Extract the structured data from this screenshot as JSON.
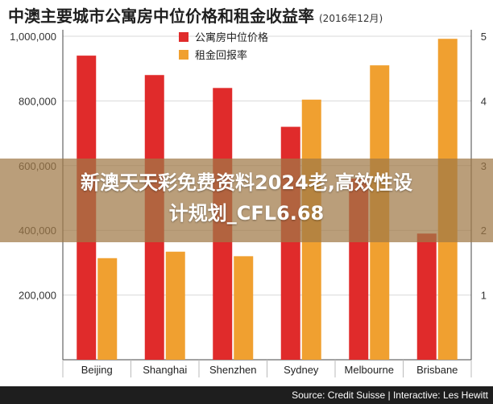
{
  "title": "中澳主要城市公寓房中位价格和租金收益率",
  "title_date": "(2016年12月)",
  "overlay": {
    "line1": "新澳天天彩免费资料2024老,高效性设",
    "line2": "计规划_CFL6.68"
  },
  "footer": {
    "source": "Source: Credit Suisse | Interactive: Les Hewitt"
  },
  "colors": {
    "price": "#e02b2b",
    "yield": "#f0a030",
    "axis": "#555555",
    "text": "#333333"
  },
  "chart_data": {
    "type": "bar",
    "categories": [
      "Beijing",
      "Shanghai",
      "Shenzhen",
      "Sydney",
      "Melbourne",
      "Brisbane"
    ],
    "series": [
      {
        "name": "公寓房中位价格",
        "axis": "left",
        "values": [
          940000,
          880000,
          840000,
          720000,
          560000,
          390000
        ]
      },
      {
        "name": "租金回报率",
        "axis": "right",
        "values": [
          1.57,
          1.67,
          1.6,
          4.02,
          4.55,
          4.96
        ]
      }
    ],
    "ylim_left": [
      0,
      1000000
    ],
    "yticks_left": [
      200000,
      400000,
      600000,
      800000,
      1000000
    ],
    "yticklabels_left": [
      "200,000",
      "400,000",
      "600,000",
      "800,000",
      "1,000,000"
    ],
    "ylim_right": [
      0,
      5
    ],
    "yticks_right": [
      1,
      2,
      3,
      4,
      5
    ],
    "yticklabels_right": [
      "1",
      "2",
      "3",
      "4",
      "5"
    ],
    "grid": true,
    "legend_position": "top-left"
  }
}
